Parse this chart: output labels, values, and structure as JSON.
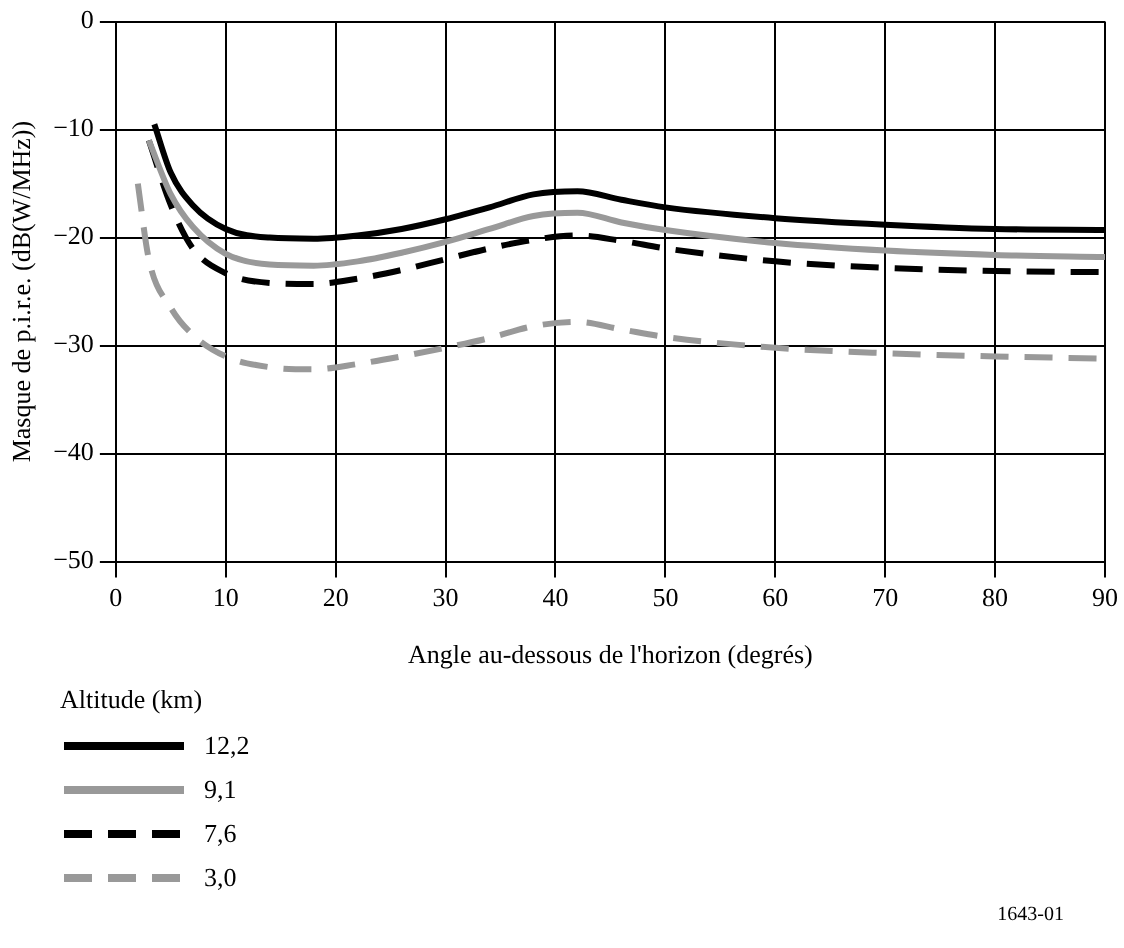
{
  "chart_data": {
    "type": "line",
    "xlabel": "Angle au-dessous de l'horizon (degrés)",
    "ylabel": "Masque de p.i.r.e. (dB(W/MHz))",
    "legend_title": "Altitude (km)",
    "legend": "bottom left",
    "grid": true,
    "marker": "none",
    "xlim": [
      0,
      90
    ],
    "xticks": [
      0,
      10,
      20,
      30,
      40,
      50,
      60,
      70,
      80,
      90
    ],
    "ylim": [
      -50,
      0
    ],
    "yticks": [
      {
        "value": -50,
        "label": "−50"
      },
      {
        "value": -40,
        "label": "−40"
      },
      {
        "value": -30,
        "label": "−30"
      },
      {
        "value": -20,
        "label": "−20"
      },
      {
        "value": -10,
        "label": "−10"
      },
      0
    ],
    "annotations": [
      "1643-01"
    ],
    "series": [
      {
        "name": "12,2",
        "color": "#000000",
        "line_style": "solid",
        "x": [
          3.5,
          5,
          7,
          10,
          14,
          18,
          22,
          26,
          30,
          34,
          38,
          42,
          46,
          50,
          60,
          70,
          80,
          90
        ],
        "values": [
          -9.5,
          -14,
          -17,
          -19.2,
          -20,
          -20.1,
          -19.8,
          -19.2,
          -18.3,
          -17.2,
          -16,
          -15.7,
          -16.5,
          -17.2,
          -18.2,
          -18.8,
          -19.2,
          -19.3
        ]
      },
      {
        "name": "9,1",
        "color": "#999999",
        "line_style": "solid",
        "x": [
          3,
          5,
          7,
          10,
          14,
          18,
          22,
          26,
          30,
          34,
          38,
          42,
          46,
          50,
          60,
          70,
          80,
          90
        ],
        "values": [
          -11,
          -16,
          -19,
          -21.5,
          -22.5,
          -22.6,
          -22.2,
          -21.4,
          -20.4,
          -19.2,
          -18,
          -17.7,
          -18.6,
          -19.3,
          -20.5,
          -21.2,
          -21.6,
          -21.8
        ]
      },
      {
        "name": "7,6",
        "color": "#000000",
        "line_style": "dashed",
        "x": [
          3,
          5,
          7,
          10,
          14,
          18,
          22,
          26,
          30,
          34,
          38,
          42,
          46,
          50,
          60,
          70,
          80,
          90
        ],
        "values": [
          -11,
          -17,
          -21,
          -23.3,
          -24.2,
          -24.3,
          -23.8,
          -23,
          -22,
          -21,
          -20.2,
          -19.8,
          -20.3,
          -21,
          -22.2,
          -22.8,
          -23.1,
          -23.2
        ]
      },
      {
        "name": "3,0",
        "color": "#999999",
        "line_style": "dashed",
        "x": [
          2,
          3,
          5,
          7,
          10,
          14,
          18,
          22,
          26,
          30,
          34,
          38,
          42,
          46,
          50,
          60,
          70,
          80,
          90
        ],
        "values": [
          -15,
          -22,
          -26.5,
          -29,
          -31,
          -32,
          -32.2,
          -31.7,
          -31,
          -30.2,
          -29.3,
          -28.2,
          -27.8,
          -28.5,
          -29.2,
          -30.2,
          -30.7,
          -31,
          -31.2
        ]
      }
    ]
  }
}
